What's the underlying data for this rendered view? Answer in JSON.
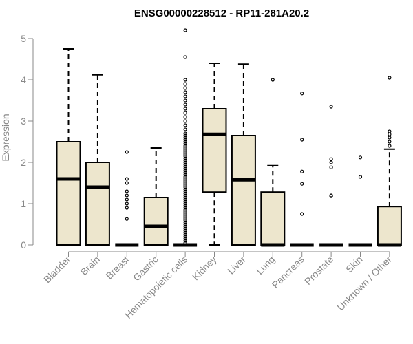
{
  "chart_data": {
    "type": "box",
    "title": "ENSG00000228512 - RP11-281A20.2",
    "ylabel": "Expression",
    "xlabel": "",
    "ylim": [
      0,
      5.2
    ],
    "yticks": [
      0,
      1,
      2,
      3,
      4,
      5
    ],
    "colors": {
      "box_fill": "#ede6cd",
      "box_stroke": "#000000",
      "axis": "#888888"
    },
    "categories": [
      "Bladder",
      "Brain",
      "Breast",
      "Gastric",
      "Hematopoietic cells",
      "Kidney",
      "Liver",
      "Lung",
      "Pancreas",
      "Prostate",
      "Skin",
      "Unknown / Other"
    ],
    "boxes": [
      {
        "category": "Bladder",
        "min": 0,
        "q1": 0,
        "median": 1.6,
        "q3": 2.5,
        "max": 4.75,
        "outliers": []
      },
      {
        "category": "Brain",
        "min": 0,
        "q1": 0,
        "median": 1.4,
        "q3": 2.0,
        "max": 4.12,
        "outliers": []
      },
      {
        "category": "Breast",
        "min": 0,
        "q1": 0,
        "median": 0,
        "q3": 0,
        "max": 0,
        "outliers": [
          0.63,
          0.9,
          1.0,
          1.1,
          1.2,
          1.3,
          1.5,
          1.6,
          2.25
        ]
      },
      {
        "category": "Gastric",
        "min": 0,
        "q1": 0,
        "median": 0.45,
        "q3": 1.15,
        "max": 2.35,
        "outliers": []
      },
      {
        "category": "Hematopoietic cells",
        "min": 0,
        "q1": 0,
        "median": 0,
        "q3": 0,
        "max": 0,
        "outliers": [
          0.05,
          0.1,
          0.15,
          0.2,
          0.25,
          0.3,
          0.35,
          0.4,
          0.45,
          0.5,
          0.55,
          0.6,
          0.65,
          0.7,
          0.75,
          0.8,
          0.85,
          0.9,
          0.95,
          1.0,
          1.05,
          1.1,
          1.15,
          1.2,
          1.25,
          1.3,
          1.35,
          1.4,
          1.45,
          1.5,
          1.55,
          1.6,
          1.65,
          1.7,
          1.75,
          1.8,
          1.85,
          1.9,
          1.95,
          2.0,
          2.05,
          2.1,
          2.15,
          2.2,
          2.25,
          2.3,
          2.35,
          2.4,
          2.45,
          2.5,
          2.55,
          2.6,
          2.65,
          2.7,
          2.8,
          2.9,
          3.0,
          3.1,
          3.2,
          3.3,
          3.4,
          3.5,
          3.6,
          3.7,
          3.8,
          3.9,
          4.0,
          4.55,
          5.2
        ]
      },
      {
        "category": "Kidney",
        "min": 0,
        "q1": 1.28,
        "median": 2.68,
        "q3": 3.3,
        "max": 4.4,
        "outliers": []
      },
      {
        "category": "Liver",
        "min": 0,
        "q1": 0,
        "median": 1.58,
        "q3": 2.65,
        "max": 4.38,
        "outliers": []
      },
      {
        "category": "Lung",
        "min": 0,
        "q1": 0,
        "median": 0,
        "q3": 1.28,
        "max": 1.92,
        "outliers": [
          4.0
        ]
      },
      {
        "category": "Pancreas",
        "min": 0,
        "q1": 0,
        "median": 0,
        "q3": 0,
        "max": 0,
        "outliers": [
          0.75,
          1.48,
          1.78,
          2.55,
          3.67
        ]
      },
      {
        "category": "Prostate",
        "min": 0,
        "q1": 0,
        "median": 0,
        "q3": 0,
        "max": 0,
        "outliers": [
          1.18,
          1.2,
          1.88,
          2.0,
          2.08,
          3.35
        ]
      },
      {
        "category": "Skin",
        "min": 0,
        "q1": 0,
        "median": 0,
        "q3": 0,
        "max": 0,
        "outliers": [
          1.65,
          2.12
        ]
      },
      {
        "category": "Unknown / Other",
        "min": 0,
        "q1": 0,
        "median": 0,
        "q3": 0.93,
        "max": 2.32,
        "outliers": [
          2.4,
          2.5,
          2.6,
          2.68,
          2.75,
          4.05
        ]
      }
    ]
  }
}
